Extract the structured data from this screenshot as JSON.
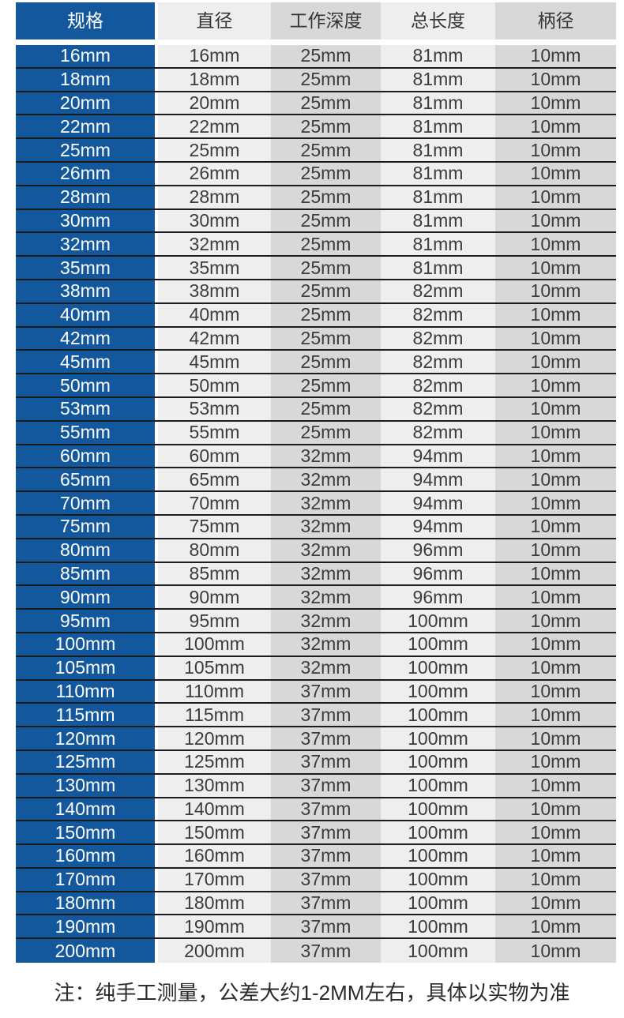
{
  "chart_data": {
    "type": "table",
    "columns": [
      "规格",
      "直径",
      "工作深度",
      "总长度",
      "柄径"
    ],
    "rows": [
      [
        "16mm",
        "16mm",
        "25mm",
        "81mm",
        "10mm"
      ],
      [
        "18mm",
        "18mm",
        "25mm",
        "81mm",
        "10mm"
      ],
      [
        "20mm",
        "20mm",
        "25mm",
        "81mm",
        "10mm"
      ],
      [
        "22mm",
        "22mm",
        "25mm",
        "81mm",
        "10mm"
      ],
      [
        "25mm",
        "25mm",
        "25mm",
        "81mm",
        "10mm"
      ],
      [
        "26mm",
        "26mm",
        "25mm",
        "81mm",
        "10mm"
      ],
      [
        "28mm",
        "28mm",
        "25mm",
        "81mm",
        "10mm"
      ],
      [
        "30mm",
        "30mm",
        "25mm",
        "81mm",
        "10mm"
      ],
      [
        "32mm",
        "32mm",
        "25mm",
        "81mm",
        "10mm"
      ],
      [
        "35mm",
        "35mm",
        "25mm",
        "81mm",
        "10mm"
      ],
      [
        "38mm",
        "38mm",
        "25mm",
        "82mm",
        "10mm"
      ],
      [
        "40mm",
        "40mm",
        "25mm",
        "82mm",
        "10mm"
      ],
      [
        "42mm",
        "42mm",
        "25mm",
        "82mm",
        "10mm"
      ],
      [
        "45mm",
        "45mm",
        "25mm",
        "82mm",
        "10mm"
      ],
      [
        "50mm",
        "50mm",
        "25mm",
        "82mm",
        "10mm"
      ],
      [
        "53mm",
        "53mm",
        "25mm",
        "82mm",
        "10mm"
      ],
      [
        "55mm",
        "55mm",
        "25mm",
        "82mm",
        "10mm"
      ],
      [
        "60mm",
        "60mm",
        "32mm",
        "94mm",
        "10mm"
      ],
      [
        "65mm",
        "65mm",
        "32mm",
        "94mm",
        "10mm"
      ],
      [
        "70mm",
        "70mm",
        "32mm",
        "94mm",
        "10mm"
      ],
      [
        "75mm",
        "75mm",
        "32mm",
        "94mm",
        "10mm"
      ],
      [
        "80mm",
        "80mm",
        "32mm",
        "96mm",
        "10mm"
      ],
      [
        "85mm",
        "85mm",
        "32mm",
        "96mm",
        "10mm"
      ],
      [
        "90mm",
        "90mm",
        "32mm",
        "96mm",
        "10mm"
      ],
      [
        "95mm",
        "95mm",
        "32mm",
        "100mm",
        "10mm"
      ],
      [
        "100mm",
        "100mm",
        "32mm",
        "100mm",
        "10mm"
      ],
      [
        "105mm",
        "105mm",
        "32mm",
        "100mm",
        "10mm"
      ],
      [
        "110mm",
        "110mm",
        "37mm",
        "100mm",
        "10mm"
      ],
      [
        "115mm",
        "115mm",
        "37mm",
        "100mm",
        "10mm"
      ],
      [
        "120mm",
        "120mm",
        "37mm",
        "100mm",
        "10mm"
      ],
      [
        "125mm",
        "125mm",
        "37mm",
        "100mm",
        "10mm"
      ],
      [
        "130mm",
        "130mm",
        "37mm",
        "100mm",
        "10mm"
      ],
      [
        "140mm",
        "140mm",
        "37mm",
        "100mm",
        "10mm"
      ],
      [
        "150mm",
        "150mm",
        "37mm",
        "100mm",
        "10mm"
      ],
      [
        "160mm",
        "160mm",
        "37mm",
        "100mm",
        "10mm"
      ],
      [
        "170mm",
        "170mm",
        "37mm",
        "100mm",
        "10mm"
      ],
      [
        "180mm",
        "180mm",
        "37mm",
        "100mm",
        "10mm"
      ],
      [
        "190mm",
        "190mm",
        "37mm",
        "100mm",
        "10mm"
      ],
      [
        "200mm",
        "200mm",
        "37mm",
        "100mm",
        "10mm"
      ]
    ],
    "note": "注：纯手工测量，公差大约1-2MM左右，具体以实物为准",
    "layout_hints": "first column blue with white text; value columns alternate light/dark gray; dark horizontal rules between rows; no vertical rules except white gap after first column"
  },
  "colors": {
    "header_blue": "#13579c",
    "col_light": "#eeeeee",
    "col_dark": "#d8d8d8",
    "row_line": "#1b1b1b",
    "cell_text": "#3c3c3c",
    "note_text": "#2b2b2b"
  }
}
